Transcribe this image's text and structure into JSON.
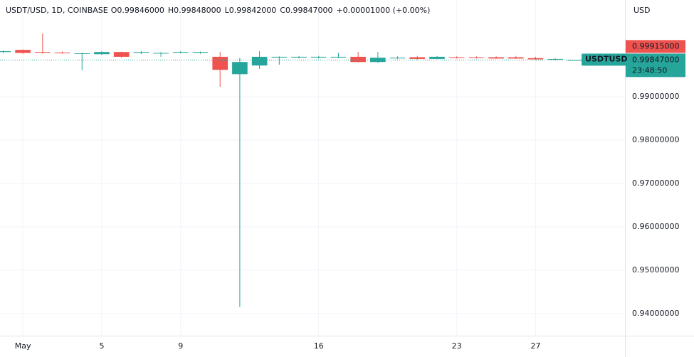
{
  "header": {
    "symbol": "USDT/USD, 1D, COINBASE",
    "fields": [
      {
        "key": "O",
        "value": "0.99846000"
      },
      {
        "key": "H",
        "value": "0.99848000"
      },
      {
        "key": "L",
        "value": "0.99842000"
      },
      {
        "key": "C",
        "value": "0.99847000"
      }
    ],
    "change": "+0.00001000 (+0.00%)"
  },
  "chart_data": {
    "type": "candlestick",
    "axis_unit": "USD",
    "up_color": "#26a69a",
    "down_color": "#ef5350",
    "x": [
      0,
      1,
      2,
      3,
      4,
      5,
      6,
      7,
      8,
      9,
      10,
      11,
      12,
      13,
      14,
      15,
      16,
      17,
      18,
      19,
      20,
      21,
      22,
      23,
      24,
      25,
      26,
      27,
      28,
      29
    ],
    "open": [
      1.0003,
      1.0008,
      1.0003,
      1.0002,
      0.9999,
      0.9998,
      1.0003,
      1.0002,
      1.0,
      1.0002,
      1.0002,
      0.9992,
      0.9952,
      0.9972,
      0.9991,
      0.9991,
      0.9991,
      0.9991,
      0.9992,
      0.998,
      0.9989,
      0.9991,
      0.9987,
      0.9991,
      0.9991,
      0.9991,
      0.9991,
      0.9989,
      0.9986,
      0.99846
    ],
    "high": [
      1.0007,
      1.0009,
      1.0046,
      1.0004,
      1.0002,
      1.0005,
      1.0004,
      1.0005,
      1.0003,
      1.0005,
      1.0004,
      1.0003,
      0.999,
      1.0005,
      0.9993,
      0.9994,
      0.9994,
      1.0001,
      1.0003,
      1.0003,
      0.9993,
      0.9994,
      0.9994,
      0.9993,
      0.9993,
      0.9993,
      0.9994,
      0.9992,
      0.9989,
      0.99848
    ],
    "low": [
      1.0001,
      0.9999,
      0.9999,
      0.9999,
      0.9961,
      0.9996,
      0.999,
      0.9998,
      0.9992,
      1.0,
      0.9999,
      0.9923,
      0.9415,
      0.9964,
      0.9974,
      0.9988,
      0.9988,
      0.9989,
      0.9979,
      0.9978,
      0.9987,
      0.9985,
      0.9986,
      0.9988,
      0.9988,
      0.9987,
      0.9987,
      0.9985,
      0.9984,
      0.99842
    ],
    "close": [
      1.0005,
      1.0001,
      1.0002,
      1.0001,
      1.0,
      1.0003,
      0.9992,
      1.0003,
      1.0001,
      1.0003,
      1.0003,
      0.9962,
      0.998,
      0.9992,
      0.9992,
      0.9992,
      0.9992,
      0.9992,
      0.998,
      0.999,
      0.999,
      0.9987,
      0.9992,
      0.999,
      0.999,
      0.9988,
      0.9988,
      0.9986,
      0.9987,
      0.99847
    ],
    "xlim": [
      -0.16,
      31.53
    ],
    "xticks": [
      {
        "value": 1,
        "label": "May"
      },
      5,
      9,
      16,
      23,
      27
    ],
    "ylim": [
      0.9349,
      1.0123
    ],
    "yticks": [
      {
        "value": 0.94,
        "label": "0.94000000"
      },
      {
        "value": 0.95,
        "label": "0.95000000"
      },
      {
        "value": 0.96,
        "label": "0.96000000"
      },
      {
        "value": 0.97,
        "label": "0.97000000"
      },
      {
        "value": 0.98,
        "label": "0.98000000"
      },
      {
        "value": 0.99,
        "label": "0.99000000"
      }
    ],
    "grid": true,
    "price_labels": [
      {
        "value": 0.99915,
        "label": "0.99915000",
        "color": "#ef5350"
      },
      {
        "value": 0.99847,
        "label": "0.99847000",
        "color": "#26a69a",
        "symbol": "USDTUSD",
        "countdown": "23:48:50"
      }
    ]
  }
}
